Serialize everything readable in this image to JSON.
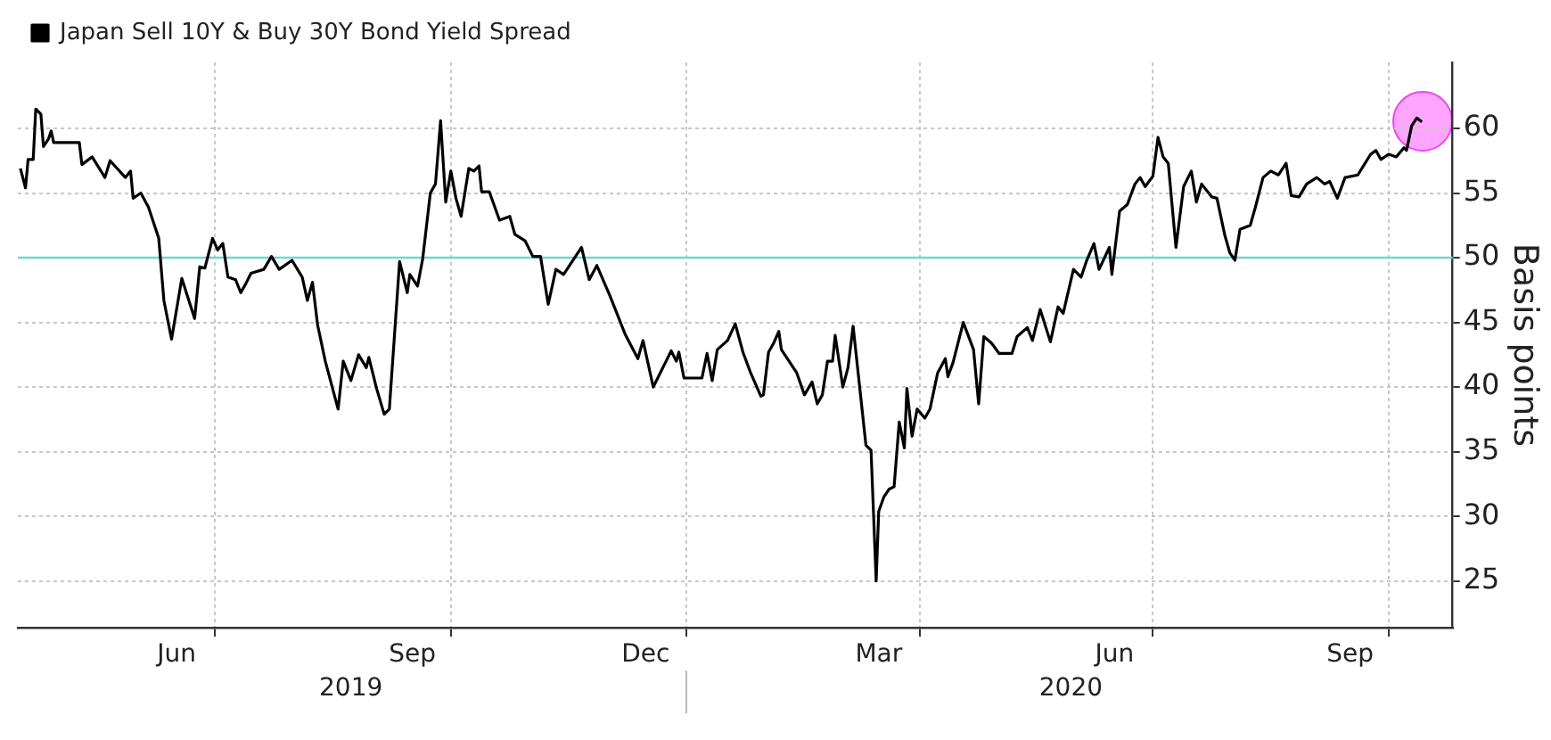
{
  "chart_data": {
    "type": "line",
    "legend": "top left",
    "grid": true,
    "ylabel": "Basis points",
    "ylim": [
      21.4,
      65.1
    ],
    "yticks": [
      25,
      30,
      35,
      40,
      45,
      50,
      55,
      60
    ],
    "xlim": [
      "2019-04-15",
      "2020-10-26"
    ],
    "xticks": [
      {
        "value": "2019-06-16",
        "label": "Jun"
      },
      {
        "value": "2019-07-01",
        "label": null
      },
      {
        "value": "2019-09-16",
        "label": "Sep"
      },
      {
        "value": "2019-10-01",
        "label": null
      },
      {
        "value": "2019-12-16",
        "label": "Dec"
      },
      {
        "value": "2020-01-01",
        "label": null
      },
      {
        "value": "2020-03-16",
        "label": "Mar"
      },
      {
        "value": "2020-04-01",
        "label": null
      },
      {
        "value": "2020-06-16",
        "label": "Jun"
      },
      {
        "value": "2020-07-01",
        "label": null
      },
      {
        "value": "2020-09-16",
        "label": "Sep"
      },
      {
        "value": "2020-10-01",
        "label": null
      }
    ],
    "x2lim": [
      "2019-04-15",
      "2020-10-26"
    ],
    "x2ticks": [
      {
        "value": "2019-08-23",
        "label": "2019"
      },
      {
        "value": "2020-01-01",
        "label": null
      },
      {
        "value": "2020-05-30",
        "label": "2020"
      }
    ],
    "ref_lines": [
      {
        "axis": "y",
        "value": 50,
        "color": "#6fd6d6"
      }
    ],
    "x": [
      "2019-04-16",
      "2019-04-18",
      "2019-04-19",
      "2019-04-21",
      "2019-04-22",
      "2019-04-24",
      "2019-04-25",
      "2019-04-27",
      "2019-04-28",
      "2019-04-29",
      "2019-05-09",
      "2019-05-10",
      "2019-05-14",
      "2019-05-19",
      "2019-05-21",
      "2019-05-27",
      "2019-05-29",
      "2019-05-30",
      "2019-06-02",
      "2019-06-05",
      "2019-06-09",
      "2019-06-11",
      "2019-06-14",
      "2019-06-18",
      "2019-06-23",
      "2019-06-25",
      "2019-06-27",
      "2019-06-30",
      "2019-07-02",
      "2019-07-04",
      "2019-07-06",
      "2019-07-09",
      "2019-07-11",
      "2019-07-13",
      "2019-07-15",
      "2019-07-20",
      "2019-07-23",
      "2019-07-26",
      "2019-07-31",
      "2019-08-04",
      "2019-08-06",
      "2019-08-08",
      "2019-08-10",
      "2019-08-13",
      "2019-08-18",
      "2019-08-20",
      "2019-08-23",
      "2019-08-26",
      "2019-08-29",
      "2019-08-30",
      "2019-09-02",
      "2019-09-05",
      "2019-09-07",
      "2019-09-11",
      "2019-09-14",
      "2019-09-15",
      "2019-09-18",
      "2019-09-20",
      "2019-09-23",
      "2019-09-25",
      "2019-09-27",
      "2019-09-29",
      "2019-10-01",
      "2019-10-03",
      "2019-10-05",
      "2019-10-08",
      "2019-10-10",
      "2019-10-12",
      "2019-10-13",
      "2019-10-16",
      "2019-10-20",
      "2019-10-24",
      "2019-10-26",
      "2019-10-30",
      "2019-11-02",
      "2019-11-05",
      "2019-11-08",
      "2019-11-11",
      "2019-11-14",
      "2019-11-21",
      "2019-11-24",
      "2019-11-27",
      "2019-12-02",
      "2019-12-08",
      "2019-12-13",
      "2019-12-15",
      "2019-12-19",
      "2019-12-21",
      "2019-12-24",
      "2019-12-26",
      "2019-12-28",
      "2019-12-29",
      "2019-12-31",
      "2020-01-07",
      "2020-01-09",
      "2020-01-11",
      "2020-01-13",
      "2020-01-17",
      "2020-01-20",
      "2020-01-23",
      "2020-01-26",
      "2020-01-30",
      "2020-01-31",
      "2020-02-02",
      "2020-02-04",
      "2020-02-06",
      "2020-02-07",
      "2020-02-13",
      "2020-02-16",
      "2020-02-19",
      "2020-02-21",
      "2020-02-23",
      "2020-02-25",
      "2020-02-27",
      "2020-02-28",
      "2020-03-02",
      "2020-03-04",
      "2020-03-06",
      "2020-03-09",
      "2020-03-11",
      "2020-03-13",
      "2020-03-15",
      "2020-03-16",
      "2020-03-18",
      "2020-03-20",
      "2020-03-22",
      "2020-03-24",
      "2020-03-26",
      "2020-03-27",
      "2020-03-29",
      "2020-03-31",
      "2020-04-03",
      "2020-04-05",
      "2020-04-08",
      "2020-04-11",
      "2020-04-12",
      "2020-04-14",
      "2020-04-18",
      "2020-04-22",
      "2020-04-24",
      "2020-04-26",
      "2020-04-29",
      "2020-05-02",
      "2020-05-07",
      "2020-05-09",
      "2020-05-13",
      "2020-05-15",
      "2020-05-18",
      "2020-05-22",
      "2020-05-25",
      "2020-05-27",
      "2020-05-31",
      "2020-06-03",
      "2020-06-05",
      "2020-06-08",
      "2020-06-10",
      "2020-06-14",
      "2020-06-15",
      "2020-06-18",
      "2020-06-21",
      "2020-06-24",
      "2020-06-26",
      "2020-06-28",
      "2020-07-01",
      "2020-07-03",
      "2020-07-05",
      "2020-07-07",
      "2020-07-10",
      "2020-07-13",
      "2020-07-16",
      "2020-07-18",
      "2020-07-20",
      "2020-07-24",
      "2020-07-26",
      "2020-07-29",
      "2020-07-31",
      "2020-08-02",
      "2020-08-04",
      "2020-08-08",
      "2020-08-10",
      "2020-08-13",
      "2020-08-16",
      "2020-08-19",
      "2020-08-22",
      "2020-08-24",
      "2020-08-27",
      "2020-08-30",
      "2020-09-03",
      "2020-09-06",
      "2020-09-08",
      "2020-09-11",
      "2020-09-14",
      "2020-09-19",
      "2020-09-24",
      "2020-09-26",
      "2020-09-28",
      "2020-10-01",
      "2020-10-04",
      "2020-10-07",
      "2020-10-08",
      "2020-10-10",
      "2020-10-12",
      "2020-10-14"
    ],
    "series": [
      {
        "name": "Japan Sell 10Y & Buy 30Y Bond Yield Spread",
        "color": "#000000",
        "values": [
          56.9,
          55.4,
          57.6,
          57.6,
          61.5,
          61.1,
          58.6,
          59.2,
          59.8,
          58.9,
          58.9,
          57.2,
          57.8,
          56.2,
          57.5,
          56.2,
          56.7,
          54.6,
          55.0,
          53.9,
          51.5,
          46.7,
          43.7,
          48.4,
          45.3,
          49.3,
          49.2,
          51.5,
          50.6,
          51.1,
          48.5,
          48.3,
          47.3,
          48.0,
          48.8,
          49.1,
          50.1,
          49.1,
          49.8,
          48.5,
          46.7,
          48.1,
          44.8,
          42.0,
          38.3,
          42.0,
          40.5,
          42.5,
          41.5,
          42.3,
          39.9,
          37.9,
          38.3,
          49.7,
          47.3,
          48.7,
          47.8,
          49.9,
          55.0,
          55.7,
          60.6,
          54.3,
          56.7,
          54.6,
          53.2,
          56.9,
          56.7,
          57.1,
          55.1,
          55.1,
          52.9,
          53.2,
          51.8,
          51.3,
          50.1,
          50.1,
          46.4,
          49.1,
          48.7,
          50.8,
          48.3,
          49.4,
          47.1,
          44.1,
          42.2,
          43.6,
          40.0,
          40.8,
          42.0,
          42.8,
          42.0,
          42.7,
          40.7,
          40.7,
          42.6,
          40.5,
          42.9,
          43.6,
          44.9,
          42.7,
          41.1,
          39.3,
          39.4,
          42.7,
          43.4,
          44.3,
          42.9,
          41.1,
          39.4,
          40.4,
          38.7,
          39.4,
          42.0,
          42.0,
          44.0,
          40.0,
          41.5,
          44.7,
          39.2,
          35.5,
          35.1,
          25.0,
          30.4,
          31.5,
          32.1,
          32.3,
          37.3,
          35.3,
          39.9,
          36.2,
          38.3,
          37.6,
          38.3,
          41.1,
          42.2,
          40.8,
          41.9,
          45.0,
          42.9,
          38.7,
          43.9,
          43.4,
          42.6,
          42.6,
          43.9,
          44.6,
          43.6,
          46.0,
          43.5,
          46.2,
          45.7,
          49.1,
          48.5,
          49.7,
          51.1,
          49.1,
          50.8,
          48.7,
          53.6,
          54.1,
          55.7,
          56.2,
          55.5,
          56.3,
          59.3,
          57.8,
          57.3,
          50.8,
          55.5,
          56.7,
          54.3,
          55.7,
          54.7,
          54.6,
          51.8,
          50.4,
          49.8,
          52.2,
          52.5,
          53.9,
          56.2,
          56.7,
          56.4,
          57.3,
          54.8,
          54.7,
          55.7,
          56.2,
          55.7,
          55.9,
          54.6,
          56.2,
          56.4,
          58.0,
          58.3,
          57.6,
          58.0,
          57.8,
          58.5,
          58.3,
          60.2,
          60.8,
          60.5
        ]
      }
    ]
  }
}
